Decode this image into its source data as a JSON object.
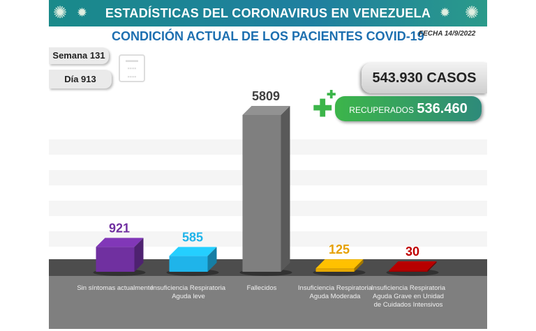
{
  "header": {
    "title": "ESTADÍSTICAS DEL CORONAVIRUS EN VENEZUELA",
    "subtitle": "CONDICIÓN ACTUAL DE LOS PACIENTES COVID-19",
    "fecha": "FECHA 14/9/2022"
  },
  "semana": "Semana 131",
  "dia": "Día 913",
  "casos": "543.930 CASOS",
  "recuperados": {
    "label": "RECUPERADOS",
    "value": "536.460"
  },
  "chart_data": {
    "type": "bar",
    "categories": [
      "Sin síntomas actualmente",
      "Insuficiencia Respiratoria Aguda leve",
      "Fallecidos",
      "Insuficiencia Respiratoria Aguda Moderada",
      "Insuficiencia Respiratoria Aguda Grave en Unidad de Cuidados Intensivos"
    ],
    "values": [
      921,
      585,
      5809,
      125,
      30
    ],
    "value_labels": [
      "921",
      "585",
      "5809",
      "125",
      "30"
    ],
    "colors": [
      "#7030a0",
      "#1fb4ea",
      "#7f7f7f",
      "#e6a800",
      "#a00000"
    ],
    "label_colors": [
      "#7030a0",
      "#1fb4ea",
      "#404040",
      "#e6a000",
      "#c00000"
    ],
    "grid": true
  }
}
